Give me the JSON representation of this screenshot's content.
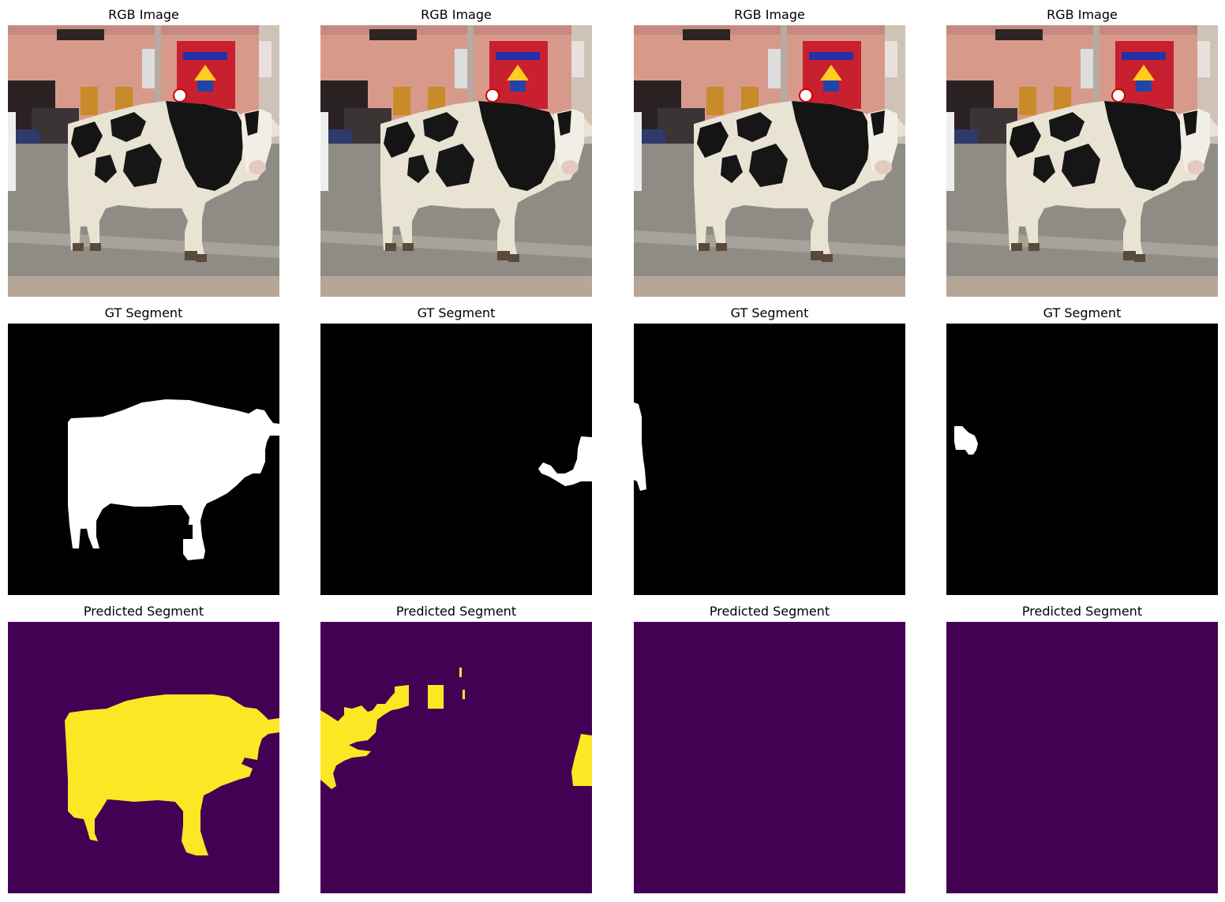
{
  "titles": {
    "rgb": "RGB Image",
    "gt": "GT Segment",
    "pred": "Predicted Segment"
  },
  "colors": {
    "background_mask": "#000000",
    "foreground_mask": "#ffffff",
    "pred_background": "#440154",
    "pred_foreground": "#fde725"
  },
  "columns": [
    {
      "gt_region": "whole-cow",
      "pred_region": "whole-cow"
    },
    {
      "gt_region": "small-blob-right",
      "pred_region": "scattered-blobs"
    },
    {
      "gt_region": "thin-sliver-left",
      "pred_region": "none"
    },
    {
      "gt_region": "tiny-blob-left",
      "pred_region": "none"
    }
  ]
}
